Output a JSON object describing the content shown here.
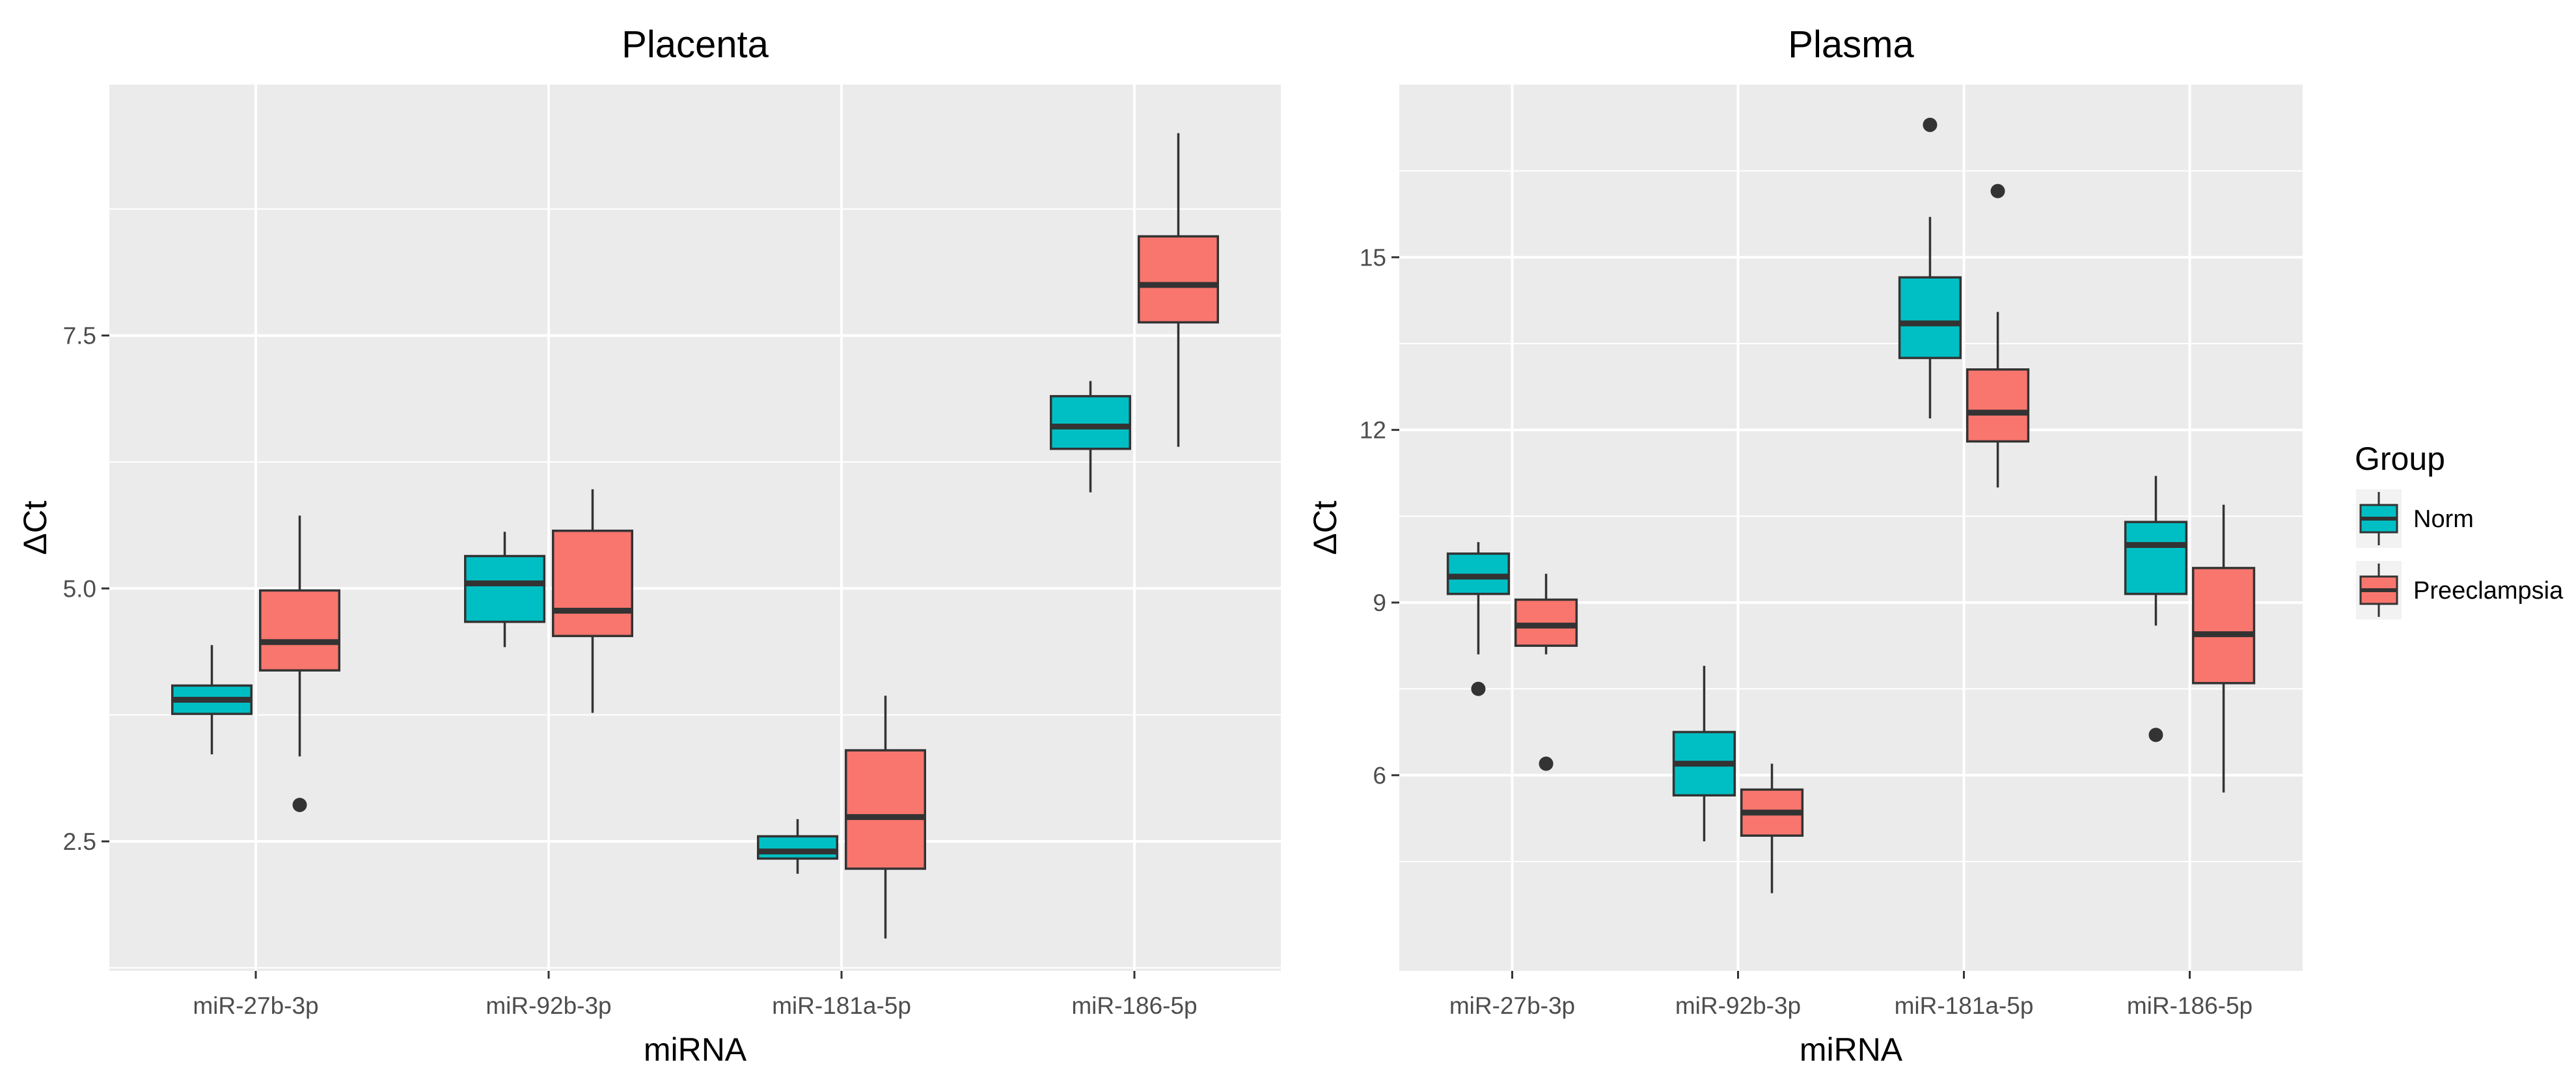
{
  "chart_data": [
    {
      "type": "box",
      "title": "Placenta",
      "xlabel": "miRNA",
      "ylabel": "ΔCt",
      "categories": [
        "miR-27b-3p",
        "miR-92b-3p",
        "miR-181a-5p",
        "miR-186-5p"
      ],
      "ylim": [
        1.22,
        9.98
      ],
      "yticks": [
        2.5,
        5.0,
        7.5
      ],
      "ytick_labels": [
        "2.5",
        "5.0",
        "7.5"
      ],
      "grid": true,
      "series": [
        {
          "name": "Norm",
          "color": "#00bfc4",
          "boxes": [
            {
              "whisker_low": 3.36,
              "q1": 3.76,
              "median": 3.9,
              "q3": 4.04,
              "whisker_high": 4.44,
              "outliers": []
            },
            {
              "whisker_low": 4.42,
              "q1": 4.67,
              "median": 5.05,
              "q3": 5.32,
              "whisker_high": 5.56,
              "outliers": []
            },
            {
              "whisker_low": 2.18,
              "q1": 2.33,
              "median": 2.4,
              "q3": 2.55,
              "whisker_high": 2.72,
              "outliers": []
            },
            {
              "whisker_low": 5.95,
              "q1": 6.38,
              "median": 6.6,
              "q3": 6.9,
              "whisker_high": 7.05,
              "outliers": []
            }
          ]
        },
        {
          "name": "Preeclampsia",
          "color": "#f8766d",
          "boxes": [
            {
              "whisker_low": 3.34,
              "q1": 4.19,
              "median": 4.47,
              "q3": 4.98,
              "whisker_high": 5.72,
              "outliers": [
                2.86
              ]
            },
            {
              "whisker_low": 3.77,
              "q1": 4.53,
              "median": 4.78,
              "q3": 5.57,
              "whisker_high": 5.98,
              "outliers": []
            },
            {
              "whisker_low": 1.54,
              "q1": 2.23,
              "median": 2.74,
              "q3": 3.4,
              "whisker_high": 3.94,
              "outliers": []
            },
            {
              "whisker_low": 6.4,
              "q1": 7.63,
              "median": 8.0,
              "q3": 8.48,
              "whisker_high": 9.5,
              "outliers": []
            }
          ]
        }
      ]
    },
    {
      "type": "box",
      "title": "Plasma",
      "xlabel": "miRNA",
      "ylabel": "ΔCt",
      "categories": [
        "miR-27b-3p",
        "miR-92b-3p",
        "miR-181a-5p",
        "miR-186-5p"
      ],
      "ylim": [
        2.6,
        18.0
      ],
      "yticks": [
        6,
        9,
        12,
        15
      ],
      "ytick_labels": [
        "6",
        "9",
        "12",
        "15"
      ],
      "grid": true,
      "series": [
        {
          "name": "Norm",
          "color": "#00bfc4",
          "boxes": [
            {
              "whisker_low": 8.1,
              "q1": 9.15,
              "median": 9.45,
              "q3": 9.85,
              "whisker_high": 10.05,
              "outliers": [
                7.5
              ]
            },
            {
              "whisker_low": 4.85,
              "q1": 5.65,
              "median": 6.2,
              "q3": 6.75,
              "whisker_high": 7.9,
              "outliers": []
            },
            {
              "whisker_low": 12.2,
              "q1": 13.25,
              "median": 13.85,
              "q3": 14.65,
              "whisker_high": 15.7,
              "outliers": [
                17.3
              ]
            },
            {
              "whisker_low": 8.6,
              "q1": 9.15,
              "median": 10.0,
              "q3": 10.4,
              "whisker_high": 11.2,
              "outliers": [
                6.7
              ]
            }
          ]
        },
        {
          "name": "Preeclampsia",
          "color": "#f8766d",
          "boxes": [
            {
              "whisker_low": 8.1,
              "q1": 8.25,
              "median": 8.6,
              "q3": 9.05,
              "whisker_high": 9.5,
              "outliers": [
                6.2
              ]
            },
            {
              "whisker_low": 3.95,
              "q1": 4.95,
              "median": 5.35,
              "q3": 5.75,
              "whisker_high": 6.2,
              "outliers": []
            },
            {
              "whisker_low": 11.0,
              "q1": 11.8,
              "median": 12.3,
              "q3": 13.05,
              "whisker_high": 14.05,
              "outliers": [
                16.15
              ]
            },
            {
              "whisker_low": 5.7,
              "q1": 7.6,
              "median": 8.45,
              "q3": 9.6,
              "whisker_high": 10.7,
              "outliers": []
            }
          ]
        }
      ]
    }
  ],
  "legend": {
    "title": "Group",
    "placement": "right",
    "entries": [
      {
        "label": "Norm",
        "color": "#00bfc4"
      },
      {
        "label": "Preeclampsia",
        "color": "#f8766d"
      }
    ]
  },
  "colors": {
    "panel_background": "#ebebeb",
    "grid": "#ffffff",
    "box_outline": "#333333",
    "outlier": "#333333"
  }
}
